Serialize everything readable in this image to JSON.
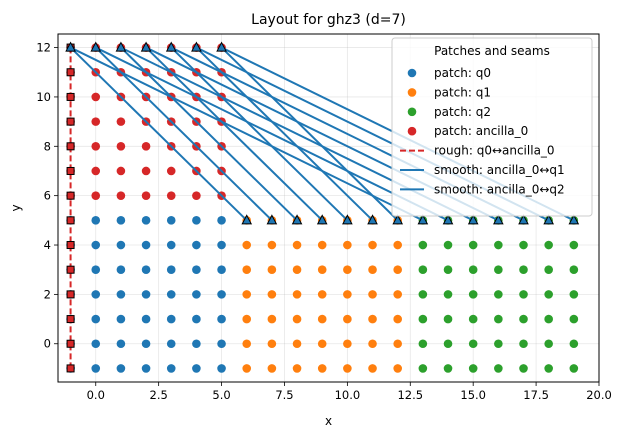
{
  "chart_data": {
    "type": "scatter",
    "title": "Layout for ghz3 (d=7)",
    "xlabel": "x",
    "ylabel": "y",
    "xlim": [
      -1.5,
      20.0
    ],
    "ylim": [
      -1.55,
      12.55
    ],
    "xticks": [
      0.0,
      2.5,
      5.0,
      7.5,
      10.0,
      12.5,
      15.0,
      17.5,
      20.0
    ],
    "xtick_labels": [
      "0.0",
      "2.5",
      "5.0",
      "7.5",
      "10.0",
      "12.5",
      "15.0",
      "17.5",
      "20.0"
    ],
    "yticks": [
      0,
      2,
      4,
      6,
      8,
      10,
      12
    ],
    "ytick_labels": [
      "0",
      "2",
      "4",
      "6",
      "8",
      "10",
      "12"
    ],
    "grid": true,
    "legend": {
      "title": "Patches and seams",
      "placement": "top-right",
      "entries": [
        {
          "label": "patch: q0",
          "kind": "point",
          "color": "#1f77b4"
        },
        {
          "label": "patch: q1",
          "kind": "point",
          "color": "#ff7f0e"
        },
        {
          "label": "patch: q2",
          "kind": "point",
          "color": "#2ca02c"
        },
        {
          "label": "patch: ancilla_0",
          "kind": "point",
          "color": "#d62728"
        },
        {
          "label": "rough: q0↔ancilla_0",
          "kind": "dashed",
          "color": "#d62728"
        },
        {
          "label": "smooth: ancilla_0↔q1",
          "kind": "line",
          "color": "#1f77b4"
        },
        {
          "label": "smooth: ancilla_0↔q2",
          "kind": "line",
          "color": "#1f77b4"
        }
      ]
    },
    "patches": [
      {
        "name": "patch: q0",
        "color": "#1f77b4",
        "x_range": [
          -1,
          5
        ],
        "y_range": [
          -1,
          5
        ]
      },
      {
        "name": "patch: q1",
        "color": "#ff7f0e",
        "x_range": [
          6,
          12
        ],
        "y_range": [
          -1,
          5
        ]
      },
      {
        "name": "patch: q2",
        "color": "#2ca02c",
        "x_range": [
          13,
          19
        ],
        "y_range": [
          -1,
          5
        ]
      },
      {
        "name": "patch: ancilla_0",
        "color": "#d62728",
        "x_range": [
          -1,
          5
        ],
        "y_range": [
          6,
          12
        ]
      }
    ],
    "rough_seam": {
      "name": "rough: q0↔ancilla_0",
      "color": "#d62728",
      "x": -1,
      "y_range": [
        -1,
        12
      ],
      "square_markers": {
        "x": -1,
        "y_range": [
          -1,
          12
        ]
      }
    },
    "smooth_seams": {
      "color": "#1f77b4",
      "segments": [
        {
          "from": [
            -1,
            12
          ],
          "to": [
            6,
            5
          ]
        },
        {
          "from": [
            0,
            12
          ],
          "to": [
            7,
            5
          ]
        },
        {
          "from": [
            1,
            12
          ],
          "to": [
            8,
            5
          ]
        },
        {
          "from": [
            2,
            12
          ],
          "to": [
            9,
            5
          ]
        },
        {
          "from": [
            3,
            12
          ],
          "to": [
            10,
            5
          ]
        },
        {
          "from": [
            4,
            12
          ],
          "to": [
            11,
            5
          ]
        },
        {
          "from": [
            5,
            12
          ],
          "to": [
            12,
            5
          ]
        },
        {
          "from": [
            -1,
            12
          ],
          "to": [
            13,
            5
          ]
        },
        {
          "from": [
            0,
            12
          ],
          "to": [
            14,
            5
          ]
        },
        {
          "from": [
            1,
            12
          ],
          "to": [
            15,
            5
          ]
        },
        {
          "from": [
            2,
            12
          ],
          "to": [
            16,
            5
          ]
        },
        {
          "from": [
            3,
            12
          ],
          "to": [
            17,
            5
          ]
        },
        {
          "from": [
            4,
            12
          ],
          "to": [
            18,
            5
          ]
        },
        {
          "from": [
            5,
            12
          ],
          "to": [
            19,
            5
          ]
        }
      ],
      "triangle_markers": [
        [
          -1,
          12
        ],
        [
          0,
          12
        ],
        [
          1,
          12
        ],
        [
          2,
          12
        ],
        [
          3,
          12
        ],
        [
          4,
          12
        ],
        [
          5,
          12
        ],
        [
          6,
          5
        ],
        [
          7,
          5
        ],
        [
          8,
          5
        ],
        [
          9,
          5
        ],
        [
          10,
          5
        ],
        [
          11,
          5
        ],
        [
          12,
          5
        ],
        [
          13,
          5
        ],
        [
          14,
          5
        ],
        [
          15,
          5
        ],
        [
          16,
          5
        ],
        [
          17,
          5
        ],
        [
          18,
          5
        ],
        [
          19,
          5
        ]
      ]
    }
  }
}
